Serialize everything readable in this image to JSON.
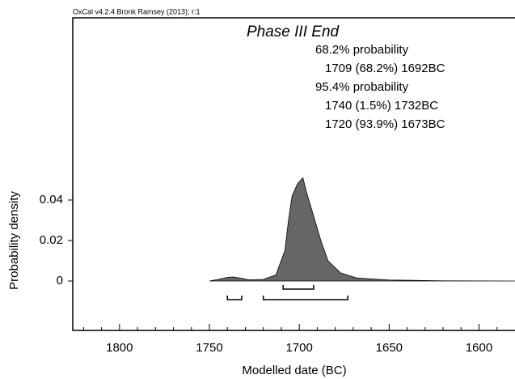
{
  "chart_data": {
    "type": "area",
    "software": "OxCal v4.2.4 Bronk Ramsey (2013); r:1",
    "title": "Phase III End",
    "x_label": "Modelled date (BC)",
    "y_label": "Probability density",
    "color": "#666666",
    "xlim": [
      1826,
      1580
    ],
    "ylim": [
      -0.0244,
      0.13
    ],
    "xticks": [
      1800,
      1750,
      1700,
      1650,
      1600
    ],
    "xminorticks": [
      1820,
      1810,
      1790,
      1780,
      1770,
      1760,
      1740,
      1730,
      1720,
      1710,
      1690,
      1680,
      1670,
      1660,
      1640,
      1630,
      1620,
      1610,
      1590
    ],
    "yticks": [
      0,
      0.02,
      0.04
    ],
    "x": [
      1750,
      1745,
      1740,
      1737,
      1733,
      1728,
      1720,
      1713,
      1708,
      1706,
      1704,
      1701,
      1699,
      1698,
      1696,
      1693,
      1688,
      1684,
      1677,
      1668,
      1650,
      1620,
      1580
    ],
    "values": [
      0,
      0.0008,
      0.0018,
      0.002,
      0.0015,
      0.0006,
      0.0008,
      0.003,
      0.015,
      0.03,
      0.042,
      0.048,
      0.05,
      0.051,
      0.044,
      0.035,
      0.02,
      0.01,
      0.004,
      0.0015,
      0.0005,
      0.0001,
      0
    ],
    "ranges": [
      {
        "label": "68.2% probability",
        "intervals": [
          {
            "from": 1709,
            "to": 1692,
            "label": "1709 (68.2%) 1692BC"
          }
        ]
      },
      {
        "label": "95.4% probability",
        "intervals": [
          {
            "from": 1740,
            "to": 1732,
            "label": "1740 (1.5%) 1732BC"
          },
          {
            "from": 1720,
            "to": 1673,
            "label": "1720 (93.9%) 1673BC"
          }
        ]
      }
    ]
  }
}
